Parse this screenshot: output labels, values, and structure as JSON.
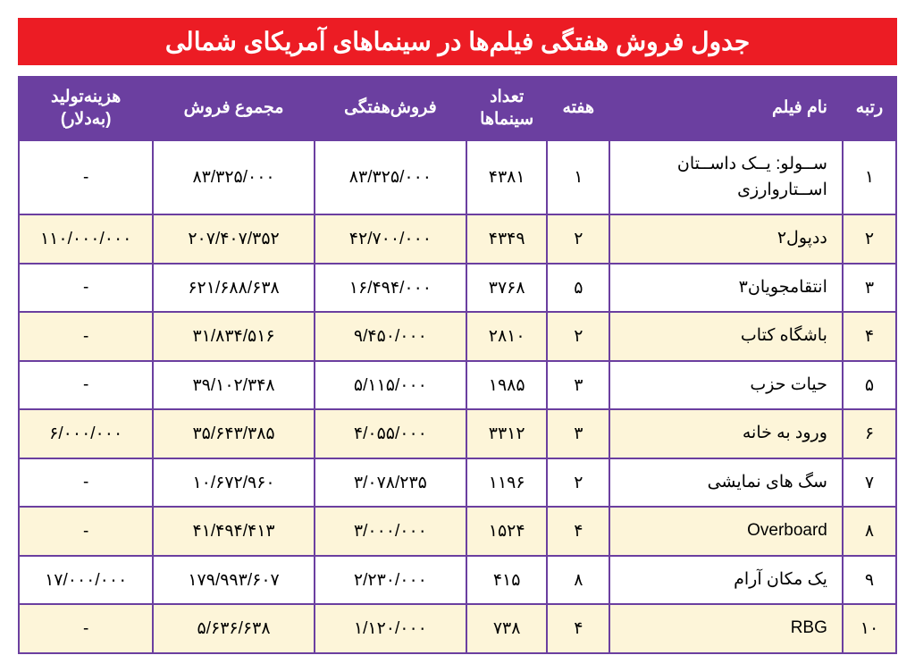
{
  "title": "جدول فروش هفتگی فیلم‌ها  در سینماهای آمریکای شمالی",
  "columns": {
    "rank": "رتبه",
    "name": "نام فیلم",
    "week": "هفته",
    "theaters": "تعداد سینماها",
    "weekly": "فروش‌هفتگی",
    "total": "مجموع فروش",
    "budget": "هزینه‌تولید (به‌دلار)"
  },
  "rows": [
    {
      "rank": "۱",
      "name": "ســولو: یــک داســتان اســتاروارزی",
      "week": "۱",
      "theaters": "۴۳۸۱",
      "weekly": "۸۳/۳۲۵/۰۰۰",
      "total": "۸۳/۳۲۵/۰۰۰",
      "budget": "-"
    },
    {
      "rank": "۲",
      "name": "ددپول۲",
      "week": "۲",
      "theaters": "۴۳۴۹",
      "weekly": "۴۲/۷۰۰/۰۰۰",
      "total": "۲۰۷/۴۰۷/۳۵۲",
      "budget": "۱۱۰/۰۰۰/۰۰۰"
    },
    {
      "rank": "۳",
      "name": "انتقامجویان۳",
      "week": "۵",
      "theaters": "۳۷۶۸",
      "weekly": "۱۶/۴۹۴/۰۰۰",
      "total": "۶۲۱/۶۸۸/۶۳۸",
      "budget": "-"
    },
    {
      "rank": "۴",
      "name": "باشگاه کتاب",
      "week": "۲",
      "theaters": "۲۸۱۰",
      "weekly": "۹/۴۵۰/۰۰۰",
      "total": "۳۱/۸۳۴/۵۱۶",
      "budget": "-"
    },
    {
      "rank": "۵",
      "name": "حیات حزب",
      "week": "۳",
      "theaters": "۱۹۸۵",
      "weekly": "۵/۱۱۵/۰۰۰",
      "total": "۳۹/۱۰۲/۳۴۸",
      "budget": "-"
    },
    {
      "rank": "۶",
      "name": "ورود به خانه",
      "week": "۳",
      "theaters": "۳۳۱۲",
      "weekly": "۴/۰۵۵/۰۰۰",
      "total": "۳۵/۶۴۳/۳۸۵",
      "budget": "۶/۰۰۰/۰۰۰"
    },
    {
      "rank": "۷",
      "name": "سگ های نمایشی",
      "week": "۲",
      "theaters": "۱۱۹۶",
      "weekly": "۳/۰۷۸/۲۳۵",
      "total": "۱۰/۶۷۲/۹۶۰",
      "budget": "-"
    },
    {
      "rank": "۸",
      "name": "Overboard",
      "week": "۴",
      "theaters": "۱۵۲۴",
      "weekly": "۳/۰۰۰/۰۰۰",
      "total": "۴۱/۴۹۴/۴۱۳",
      "budget": "-"
    },
    {
      "rank": "۹",
      "name": "یک مکان آرام",
      "week": "۸",
      "theaters": "۴۱۵",
      "weekly": "۲/۲۳۰/۰۰۰",
      "total": "۱۷۹/۹۹۳/۶۰۷",
      "budget": "۱۷/۰۰۰/۰۰۰"
    },
    {
      "rank": "۱۰",
      "name": "RBG",
      "week": "۴",
      "theaters": "۷۳۸",
      "weekly": "۱/۱۲۰/۰۰۰",
      "total": "۵/۶۳۶/۶۳۸",
      "budget": "-"
    }
  ],
  "styles": {
    "title_bg": "#ec1c24",
    "title_fg": "#ffffff",
    "header_bg": "#6b3fa0",
    "header_fg": "#ffffff",
    "row_odd_bg": "#ffffff",
    "row_even_bg": "#fdf5d9",
    "border_color": "#6b3fa0",
    "title_fontsize": 28,
    "header_fontsize": 19,
    "cell_fontsize": 19
  }
}
